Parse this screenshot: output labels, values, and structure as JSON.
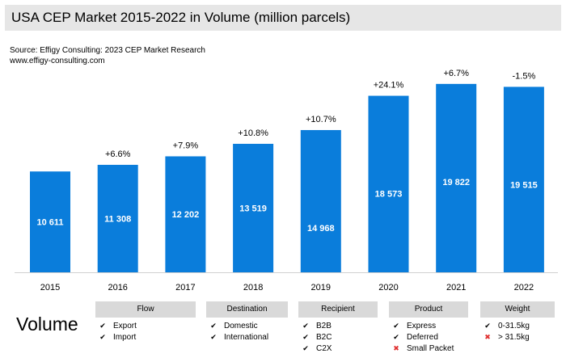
{
  "title": "USA CEP Market 2015-2022 in Volume (million parcels)",
  "source_line1": "Source: Effigy Consulting: 2023 CEP Market Research",
  "source_line2": "www.effigy-consulting.com",
  "colors": {
    "bar": "#0a7ddb",
    "bar_label": "#ffffff",
    "title_bg": "#e6e6e6",
    "category_bg": "#d9d9d9",
    "cross": "#e03030"
  },
  "chart_data": {
    "type": "bar",
    "title": "USA CEP Market 2015-2022 in Volume (million parcels)",
    "xlabel": "",
    "ylabel": "",
    "ylim": [
      0,
      21000
    ],
    "grid": false,
    "categories": [
      "2015",
      "2016",
      "2017",
      "2018",
      "2019",
      "2020",
      "2021",
      "2022"
    ],
    "values": [
      10611,
      11308,
      12202,
      13519,
      14968,
      18573,
      19822,
      19515
    ],
    "value_labels": [
      "10 611",
      "11 308",
      "12 202",
      "13 519",
      "14 968",
      "18 573",
      "19 822",
      "19 515"
    ],
    "growth_labels": [
      "",
      "+6.6%",
      "+7.9%",
      "+10.8%",
      "+10.7%",
      "+24.1%",
      "+6.7%",
      "-1.5%"
    ]
  },
  "volume_label": "Volume",
  "categories": [
    {
      "title": "Flow",
      "items": [
        {
          "label": "Export",
          "mark": "check"
        },
        {
          "label": "Import",
          "mark": "check"
        }
      ]
    },
    {
      "title": "Destination",
      "items": [
        {
          "label": "Domestic",
          "mark": "check"
        },
        {
          "label": "International",
          "mark": "check"
        }
      ]
    },
    {
      "title": "Recipient",
      "items": [
        {
          "label": "B2B",
          "mark": "check"
        },
        {
          "label": "B2C",
          "mark": "check"
        },
        {
          "label": "C2X",
          "mark": "check"
        }
      ]
    },
    {
      "title": "Product",
      "items": [
        {
          "label": "Express",
          "mark": "check"
        },
        {
          "label": "Deferred",
          "mark": "check"
        },
        {
          "label": "Small Packet",
          "mark": "cross"
        }
      ]
    },
    {
      "title": "Weight",
      "items": [
        {
          "label": "0-31.5kg",
          "mark": "check"
        },
        {
          "label": "> 31.5kg",
          "mark": "cross"
        }
      ]
    }
  ]
}
